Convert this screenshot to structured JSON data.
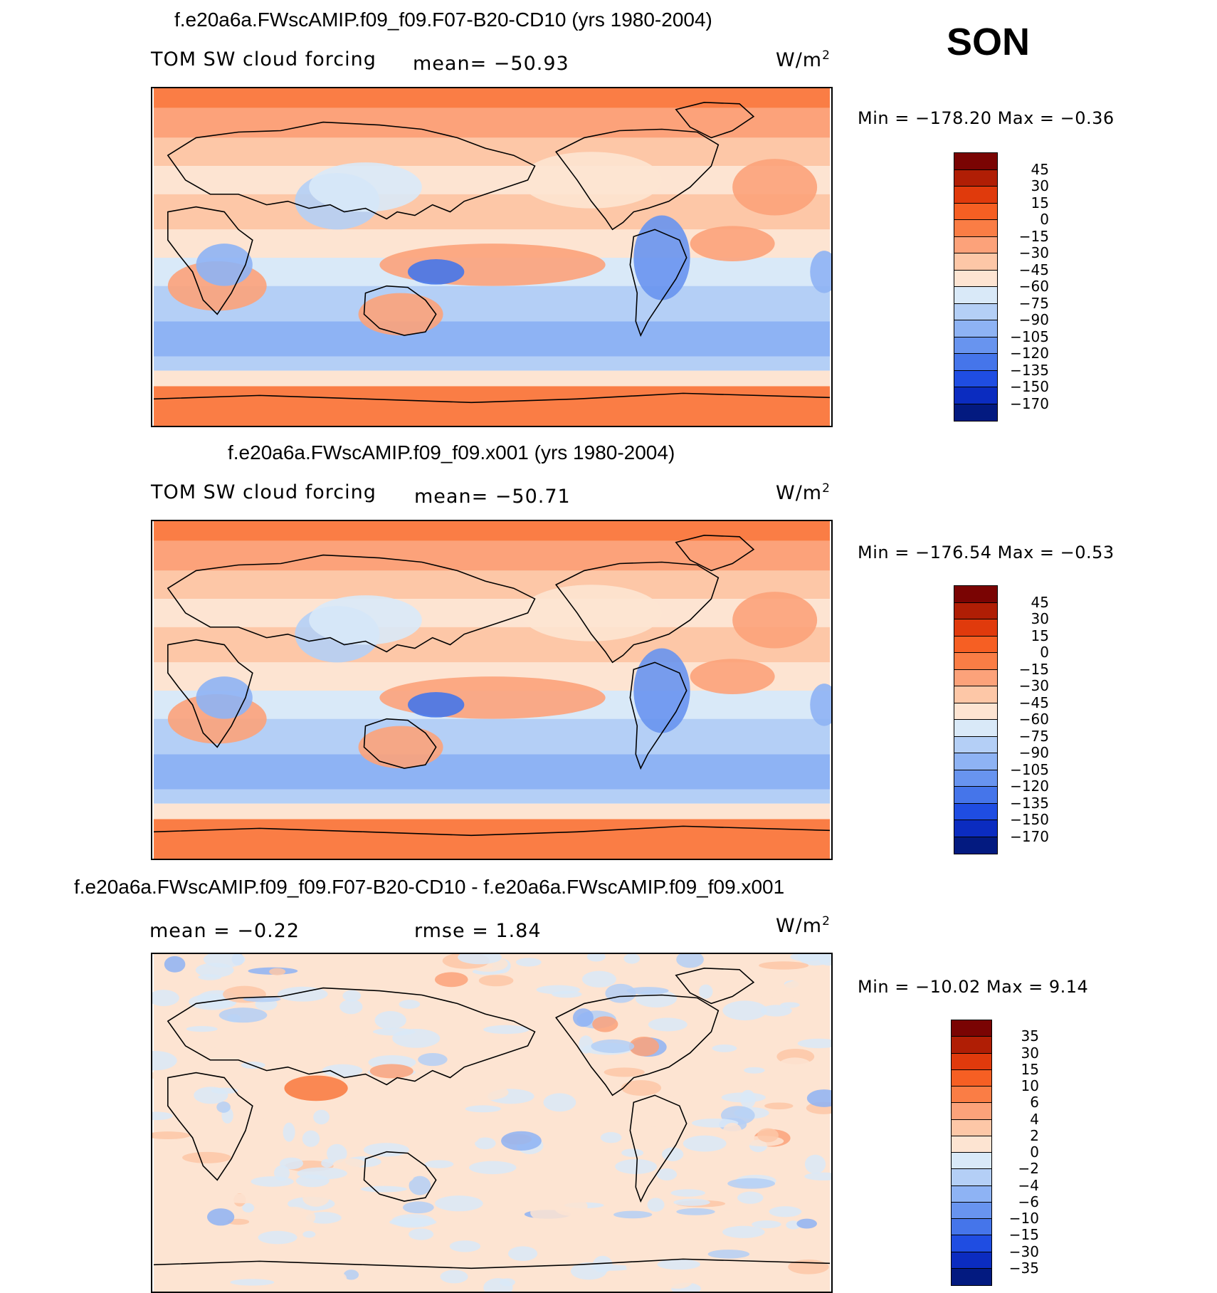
{
  "season": "SON",
  "panels": [
    {
      "title": "f.e20a6a.FWscAMIP.f09_f09.F07-B20-CD10 (yrs 1980-2004)",
      "left_label": "TOM  SW  cloud  forcing",
      "mean_text": "mean=  −50.93",
      "units": "W/m",
      "units_sup": "2",
      "min_max": "Min  =  −178.20  Max  =    −0.36"
    },
    {
      "title": "f.e20a6a.FWscAMIP.f09_f09.x001 (yrs 1980-2004)",
      "left_label": "TOM  SW  cloud  forcing",
      "mean_text": "mean=  −50.71",
      "units": "W/m",
      "units_sup": "2",
      "min_max": "Min  =  −176.54  Max  =    −0.53"
    },
    {
      "title": "f.e20a6a.FWscAMIP.f09_f09.F07-B20-CD10 - f.e20a6a.FWscAMIP.f09_f09.x001",
      "left_label": "mean  =    −0.22",
      "mean_text": "rmse  =     1.84",
      "units": "W/m",
      "units_sup": "2",
      "min_max": "Min  =  −10.02  Max  =     9.14"
    }
  ],
  "chart_data": [
    {
      "type": "heatmap",
      "title": "f.e20a6a.FWscAMIP.f09_f09.F07-B20-CD10 (yrs 1980-2004)",
      "variable": "TOM SW cloud forcing",
      "units": "W/m2",
      "mean": -50.93,
      "min": -178.2,
      "max": -0.36,
      "levels": [
        "45",
        "30",
        "15",
        "0",
        "−15",
        "−30",
        "−45",
        "−60",
        "−75",
        "−90",
        "−105",
        "−120",
        "−135",
        "−150",
        "−170"
      ],
      "colors": [
        "#7a0403",
        "#b01e05",
        "#e03a0c",
        "#f65f23",
        "#fa7d45",
        "#fca27a",
        "#fdc7a7",
        "#fde4d2",
        "#d9e9f8",
        "#b4cff6",
        "#8eb3f4",
        "#6894ef",
        "#4575ea",
        "#1f4de2",
        "#0b2cc0",
        "#031a80"
      ]
    },
    {
      "type": "heatmap",
      "title": "f.e20a6a.FWscAMIP.f09_f09.x001 (yrs 1980-2004)",
      "variable": "TOM SW cloud forcing",
      "units": "W/m2",
      "mean": -50.71,
      "min": -176.54,
      "max": -0.53,
      "levels": [
        "45",
        "30",
        "15",
        "0",
        "−15",
        "−30",
        "−45",
        "−60",
        "−75",
        "−90",
        "−105",
        "−120",
        "−135",
        "−150",
        "−170"
      ],
      "colors": [
        "#7a0403",
        "#b01e05",
        "#e03a0c",
        "#f65f23",
        "#fa7d45",
        "#fca27a",
        "#fdc7a7",
        "#fde4d2",
        "#d9e9f8",
        "#b4cff6",
        "#8eb3f4",
        "#6894ef",
        "#4575ea",
        "#1f4de2",
        "#0b2cc0",
        "#031a80"
      ]
    },
    {
      "type": "heatmap",
      "title": "f.e20a6a.FWscAMIP.f09_f09.F07-B20-CD10 - f.e20a6a.FWscAMIP.f09_f09.x001",
      "units": "W/m2",
      "mean": -0.22,
      "rmse": 1.84,
      "min": -10.02,
      "max": 9.14,
      "levels": [
        "35",
        "30",
        "15",
        "10",
        "6",
        "4",
        "2",
        "0",
        "−2",
        "−4",
        "−6",
        "−10",
        "−15",
        "−30",
        "−35"
      ],
      "colors": [
        "#7a0403",
        "#b01e05",
        "#e03a0c",
        "#f65f23",
        "#fa7d45",
        "#fca27a",
        "#fdc7a7",
        "#fde4d2",
        "#d9e9f8",
        "#b4cff6",
        "#8eb3f4",
        "#6894ef",
        "#4575ea",
        "#1f4de2",
        "#0b2cc0",
        "#031a80"
      ]
    }
  ]
}
